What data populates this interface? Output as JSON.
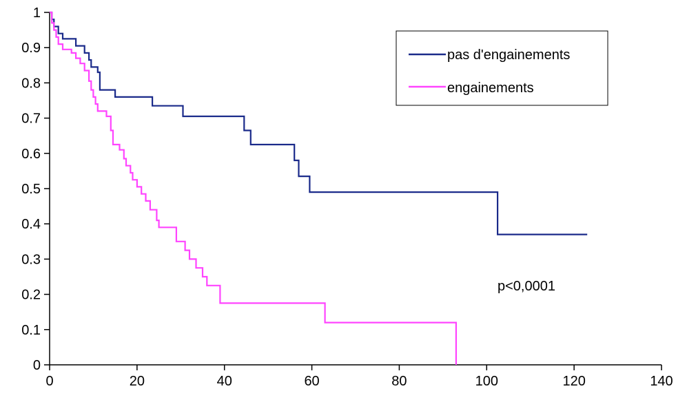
{
  "chart_data": {
    "type": "line",
    "step": true,
    "title": "",
    "xlabel": "",
    "ylabel": "",
    "xlim": [
      0,
      140
    ],
    "ylim": [
      0,
      1
    ],
    "x_ticks": [
      "0",
      "20",
      "40",
      "60",
      "80",
      "100",
      "120",
      "140"
    ],
    "y_ticks": [
      "0",
      "0.1",
      "0.2",
      "0.3",
      "0.4",
      "0.5",
      "0.6",
      "0.7",
      "0.8",
      "0.9",
      "1"
    ],
    "grid": false,
    "legend_position": "top-right",
    "annotation": "p<0,0001",
    "series": [
      {
        "name": "pas d'engainements",
        "color": "#1a2a8a",
        "points": [
          [
            0,
            1.0
          ],
          [
            0.5,
            0.98
          ],
          [
            1,
            0.96
          ],
          [
            2,
            0.94
          ],
          [
            3,
            0.925
          ],
          [
            6,
            0.905
          ],
          [
            8,
            0.885
          ],
          [
            9,
            0.865
          ],
          [
            9.5,
            0.845
          ],
          [
            11,
            0.83
          ],
          [
            11.5,
            0.78
          ],
          [
            15,
            0.76
          ],
          [
            23.5,
            0.735
          ],
          [
            30.5,
            0.705
          ],
          [
            44.5,
            0.665
          ],
          [
            46,
            0.625
          ],
          [
            56,
            0.58
          ],
          [
            57,
            0.535
          ],
          [
            59.5,
            0.49
          ],
          [
            102.5,
            0.37
          ],
          [
            123,
            0.37
          ]
        ]
      },
      {
        "name": "engainements",
        "color": "#ff44ff",
        "points": [
          [
            0,
            1.0
          ],
          [
            0.5,
            0.97
          ],
          [
            1,
            0.95
          ],
          [
            1.5,
            0.93
          ],
          [
            2,
            0.91
          ],
          [
            3,
            0.895
          ],
          [
            5,
            0.885
          ],
          [
            6,
            0.87
          ],
          [
            7,
            0.855
          ],
          [
            8,
            0.835
          ],
          [
            9,
            0.805
          ],
          [
            9.5,
            0.78
          ],
          [
            10,
            0.76
          ],
          [
            10.5,
            0.74
          ],
          [
            11,
            0.72
          ],
          [
            13,
            0.705
          ],
          [
            14,
            0.665
          ],
          [
            14.5,
            0.625
          ],
          [
            16,
            0.61
          ],
          [
            17,
            0.585
          ],
          [
            17.5,
            0.565
          ],
          [
            18.5,
            0.545
          ],
          [
            19,
            0.525
          ],
          [
            20,
            0.505
          ],
          [
            21,
            0.485
          ],
          [
            22,
            0.465
          ],
          [
            23,
            0.44
          ],
          [
            24.5,
            0.41
          ],
          [
            25,
            0.39
          ],
          [
            27,
            0.39
          ],
          [
            29,
            0.35
          ],
          [
            31,
            0.325
          ],
          [
            32,
            0.3
          ],
          [
            33.5,
            0.275
          ],
          [
            35,
            0.25
          ],
          [
            36,
            0.225
          ],
          [
            39,
            0.175
          ],
          [
            63,
            0.12
          ],
          [
            93,
            0.0
          ]
        ]
      }
    ]
  }
}
